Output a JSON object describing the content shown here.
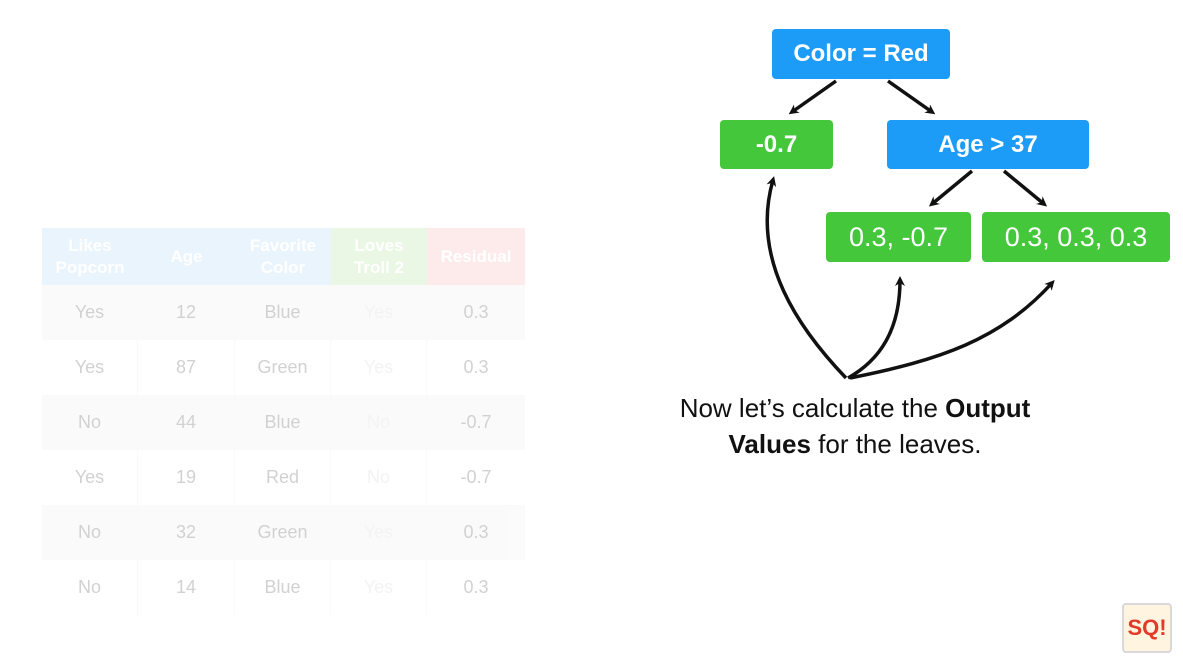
{
  "table": {
    "headers": [
      "Likes\nPopcorn",
      "Age",
      "Favorite\nColor",
      "Loves\nTroll 2",
      "Residual"
    ],
    "rows": [
      [
        "Yes",
        "12",
        "Blue",
        "Yes",
        "0.3"
      ],
      [
        "Yes",
        "87",
        "Green",
        "Yes",
        "0.3"
      ],
      [
        "No",
        "44",
        "Blue",
        "No",
        "-0.7"
      ],
      [
        "Yes",
        "19",
        "Red",
        "No",
        "-0.7"
      ],
      [
        "No",
        "32",
        "Green",
        "Yes",
        "0.3"
      ],
      [
        "No",
        "14",
        "Blue",
        "Yes",
        "0.3"
      ]
    ]
  },
  "tree": {
    "root": "Color = Red",
    "left_leaf": "-0.7",
    "right_split": "Age > 37",
    "leaf_a": "0.3, -0.7",
    "leaf_b": "0.3, 0.3, 0.3"
  },
  "caption": {
    "part1": "Now let’s calculate the ",
    "bold1": "Output",
    "bold2": "Values",
    "part2": " for the leaves."
  },
  "colors": {
    "split_node": "#1c9bf7",
    "leaf_node": "#45c73b",
    "header_blue": "#cfe7fb",
    "header_green": "#d2eec5",
    "header_red": "#fbd5d3"
  },
  "logo": {
    "text": "SQ!"
  }
}
